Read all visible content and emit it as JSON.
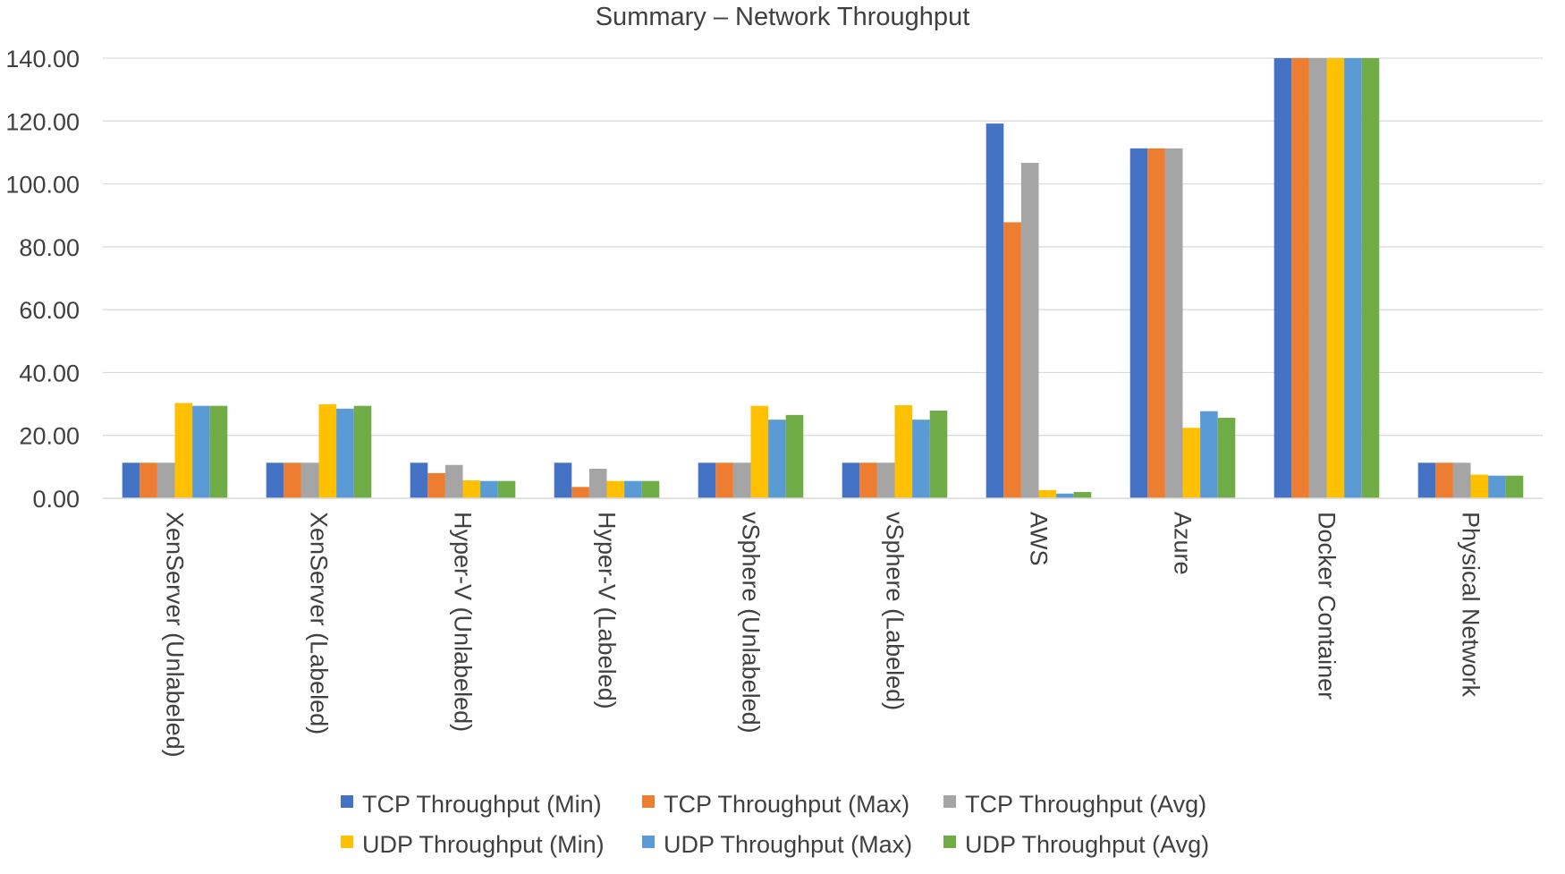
{
  "chart_data": {
    "type": "bar",
    "title": "Summary – Network Throughput",
    "xlabel": "",
    "ylabel": "",
    "ylim": [
      0,
      140
    ],
    "yticks": [
      0,
      20,
      40,
      60,
      80,
      100,
      120,
      140
    ],
    "ytick_labels": [
      "0.00",
      "20.00",
      "40.00",
      "60.00",
      "80.00",
      "100.00",
      "120.00",
      "140.00"
    ],
    "grid": true,
    "legend_position": "bottom",
    "categories": [
      "XenServer (Unlabeled)",
      "XenServer (Labeled)",
      "Hyper-V (Unlabeled)",
      "Hyper-V (Labeled)",
      "vSphere (Unlabeled)",
      "vSphere (Labeled)",
      "AWS",
      "Azure",
      "Docker Container",
      "Physical Network"
    ],
    "series": [
      {
        "name": "TCP Throughput (Min)",
        "color": "#4472c4",
        "values": [
          11.3,
          11.3,
          11.3,
          11.3,
          11.3,
          11.3,
          119.2,
          111.3,
          140,
          11.3
        ]
      },
      {
        "name": "TCP Throughput (Max)",
        "color": "#ed7d31",
        "values": [
          11.3,
          11.3,
          8.0,
          3.6,
          11.3,
          11.3,
          87.8,
          111.3,
          140,
          11.3
        ]
      },
      {
        "name": "TCP Throughput (Avg)",
        "color": "#a5a5a5",
        "values": [
          11.3,
          11.3,
          10.6,
          9.4,
          11.3,
          11.3,
          106.7,
          111.3,
          140,
          11.3
        ]
      },
      {
        "name": "UDP Throughput (Min)",
        "color": "#ffc000",
        "values": [
          30.3,
          29.9,
          5.7,
          5.5,
          29.4,
          29.6,
          2.6,
          22.4,
          140,
          7.5
        ]
      },
      {
        "name": "UDP Throughput (Max)",
        "color": "#5b9bd5",
        "values": [
          29.4,
          28.5,
          5.5,
          5.5,
          25.0,
          25.0,
          1.5,
          27.7,
          140,
          7.2
        ]
      },
      {
        "name": "UDP Throughput (Avg)",
        "color": "#70ad47",
        "values": [
          29.4,
          29.4,
          5.5,
          5.5,
          26.5,
          27.9,
          2.0,
          25.6,
          140,
          7.2
        ]
      }
    ]
  }
}
